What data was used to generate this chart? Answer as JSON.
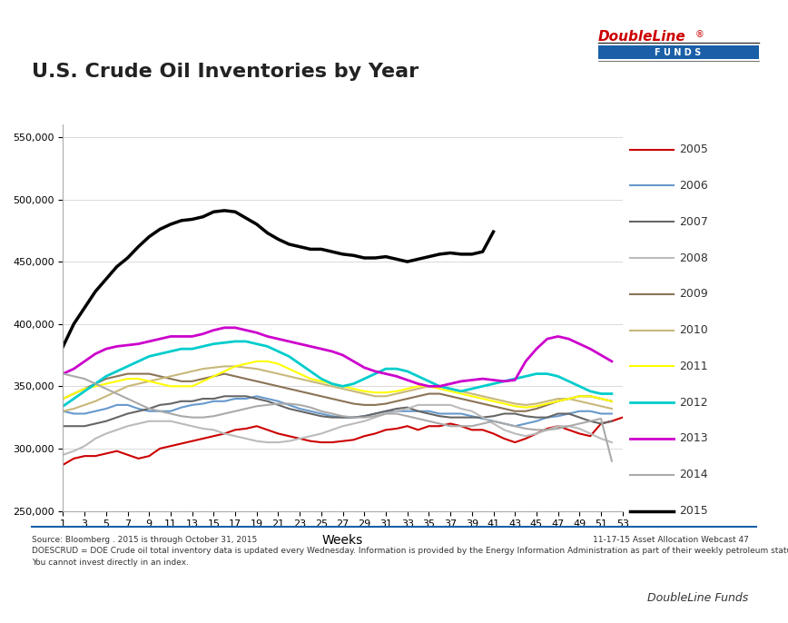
{
  "title": "U.S. Crude Oil Inventories by Year",
  "xlabel": "Weeks",
  "ylabel": "",
  "background_color": "#ffffff",
  "years": [
    "2005",
    "2006",
    "2007",
    "2008",
    "2009",
    "2010",
    "2011",
    "2012",
    "2013",
    "2014",
    "2015"
  ],
  "colors": {
    "2005": "#cc0000",
    "2006": "#6699cc",
    "2007": "#666666",
    "2008": "#bbbbbb",
    "2009": "#8b7355",
    "2010": "#c8b87a",
    "2011": "#ffff00",
    "2012": "#00cccc",
    "2013": "#cc00cc",
    "2014": "#aaaaaa",
    "2015": "#000000"
  },
  "linewidths": {
    "2005": 1.5,
    "2006": 1.5,
    "2007": 1.5,
    "2008": 1.5,
    "2009": 1.5,
    "2010": 1.5,
    "2011": 1.5,
    "2012": 2.0,
    "2013": 2.0,
    "2014": 1.5,
    "2015": 2.5
  },
  "ylim": [
    250000,
    560000
  ],
  "yticks": [
    250000,
    300000,
    350000,
    400000,
    450000,
    500000,
    550000
  ],
  "xticks": [
    1,
    3,
    5,
    7,
    9,
    11,
    13,
    15,
    17,
    19,
    21,
    23,
    25,
    27,
    29,
    31,
    33,
    35,
    37,
    39,
    41,
    43,
    45,
    47,
    49,
    51,
    53
  ],
  "source_text": "Source: Bloomberg . 2015 is through October 31, 2015\nDOESCRUD = DOE Crude oil total inventory data is updated every Wednesday. Information is provided by the Energy Information Administration as part of their weekly petroleum status report.\nYou cannot invest directly in an index.",
  "right_text": "11-17-15 Asset Allocation Webcast 47",
  "bottom_text": "DoubleLine Funds",
  "data": {
    "2005": [
      287000,
      292000,
      294000,
      294000,
      296000,
      298000,
      295000,
      292000,
      294000,
      300000,
      302000,
      304000,
      306000,
      308000,
      310000,
      312000,
      315000,
      316000,
      318000,
      315000,
      312000,
      310000,
      308000,
      306000,
      305000,
      305000,
      306000,
      307000,
      310000,
      312000,
      315000,
      316000,
      318000,
      315000,
      318000,
      318000,
      320000,
      318000,
      315000,
      315000,
      312000,
      308000,
      305000,
      308000,
      312000,
      316000,
      318000,
      315000,
      312000,
      310000,
      320000,
      322000,
      325000
    ],
    "2006": [
      330000,
      328000,
      328000,
      330000,
      332000,
      335000,
      335000,
      332000,
      330000,
      330000,
      330000,
      333000,
      335000,
      336000,
      338000,
      338000,
      340000,
      340000,
      342000,
      340000,
      338000,
      335000,
      332000,
      330000,
      328000,
      326000,
      325000,
      325000,
      326000,
      328000,
      330000,
      330000,
      330000,
      330000,
      330000,
      328000,
      328000,
      328000,
      326000,
      324000,
      322000,
      320000,
      318000,
      320000,
      322000,
      325000,
      326000,
      328000,
      330000,
      330000,
      328000,
      328000,
      null
    ],
    "2007": [
      318000,
      318000,
      318000,
      320000,
      322000,
      325000,
      328000,
      330000,
      332000,
      335000,
      336000,
      338000,
      338000,
      340000,
      340000,
      342000,
      342000,
      342000,
      340000,
      338000,
      335000,
      332000,
      330000,
      328000,
      326000,
      325000,
      325000,
      325000,
      326000,
      328000,
      330000,
      332000,
      333000,
      330000,
      328000,
      326000,
      325000,
      325000,
      325000,
      325000,
      326000,
      328000,
      328000,
      326000,
      325000,
      325000,
      328000,
      328000,
      325000,
      322000,
      320000,
      322000,
      null
    ],
    "2008": [
      295000,
      298000,
      302000,
      308000,
      312000,
      315000,
      318000,
      320000,
      322000,
      322000,
      322000,
      320000,
      318000,
      316000,
      315000,
      312000,
      310000,
      308000,
      306000,
      305000,
      305000,
      306000,
      308000,
      310000,
      312000,
      315000,
      318000,
      320000,
      322000,
      325000,
      328000,
      330000,
      332000,
      335000,
      335000,
      335000,
      335000,
      332000,
      330000,
      325000,
      320000,
      315000,
      312000,
      310000,
      312000,
      315000,
      318000,
      318000,
      316000,
      312000,
      308000,
      305000,
      null
    ],
    "2009": [
      340000,
      344000,
      348000,
      352000,
      356000,
      358000,
      360000,
      360000,
      360000,
      358000,
      356000,
      354000,
      354000,
      356000,
      358000,
      360000,
      358000,
      356000,
      354000,
      352000,
      350000,
      348000,
      346000,
      344000,
      342000,
      340000,
      338000,
      336000,
      335000,
      335000,
      336000,
      338000,
      340000,
      342000,
      344000,
      344000,
      342000,
      340000,
      338000,
      336000,
      334000,
      332000,
      330000,
      330000,
      332000,
      335000,
      338000,
      340000,
      342000,
      342000,
      340000,
      338000,
      null
    ],
    "2010": [
      330000,
      332000,
      335000,
      338000,
      342000,
      346000,
      350000,
      352000,
      354000,
      356000,
      358000,
      360000,
      362000,
      364000,
      365000,
      366000,
      366000,
      365000,
      364000,
      362000,
      360000,
      358000,
      356000,
      354000,
      352000,
      350000,
      348000,
      346000,
      344000,
      342000,
      342000,
      344000,
      346000,
      348000,
      350000,
      350000,
      348000,
      346000,
      344000,
      342000,
      340000,
      338000,
      336000,
      335000,
      336000,
      338000,
      340000,
      340000,
      338000,
      336000,
      334000,
      332000,
      null
    ],
    "2011": [
      340000,
      344000,
      348000,
      350000,
      352000,
      354000,
      356000,
      356000,
      354000,
      352000,
      350000,
      350000,
      350000,
      354000,
      358000,
      362000,
      366000,
      368000,
      370000,
      370000,
      368000,
      364000,
      360000,
      356000,
      354000,
      352000,
      350000,
      348000,
      346000,
      345000,
      345000,
      346000,
      348000,
      350000,
      350000,
      348000,
      346000,
      344000,
      342000,
      340000,
      338000,
      336000,
      334000,
      333000,
      334000,
      336000,
      338000,
      340000,
      342000,
      342000,
      340000,
      338000,
      null
    ],
    "2012": [
      334000,
      340000,
      346000,
      352000,
      358000,
      362000,
      366000,
      370000,
      374000,
      376000,
      378000,
      380000,
      380000,
      382000,
      384000,
      385000,
      386000,
      386000,
      384000,
      382000,
      378000,
      374000,
      368000,
      362000,
      356000,
      352000,
      350000,
      352000,
      356000,
      360000,
      364000,
      364000,
      362000,
      358000,
      354000,
      350000,
      348000,
      346000,
      348000,
      350000,
      352000,
      354000,
      356000,
      358000,
      360000,
      360000,
      358000,
      354000,
      350000,
      346000,
      344000,
      344000,
      null
    ],
    "2013": [
      360000,
      364000,
      370000,
      376000,
      380000,
      382000,
      383000,
      384000,
      386000,
      388000,
      390000,
      390000,
      390000,
      392000,
      395000,
      397000,
      397000,
      395000,
      393000,
      390000,
      388000,
      386000,
      384000,
      382000,
      380000,
      378000,
      375000,
      370000,
      365000,
      362000,
      360000,
      358000,
      355000,
      352000,
      350000,
      350000,
      352000,
      354000,
      355000,
      356000,
      355000,
      354000,
      355000,
      370000,
      380000,
      388000,
      390000,
      388000,
      384000,
      380000,
      375000,
      370000,
      null
    ],
    "2014": [
      360000,
      358000,
      356000,
      352000,
      348000,
      344000,
      340000,
      336000,
      332000,
      330000,
      328000,
      326000,
      325000,
      325000,
      326000,
      328000,
      330000,
      332000,
      334000,
      335000,
      336000,
      336000,
      335000,
      333000,
      330000,
      328000,
      326000,
      325000,
      325000,
      326000,
      328000,
      328000,
      326000,
      324000,
      322000,
      320000,
      318000,
      318000,
      318000,
      320000,
      322000,
      320000,
      318000,
      316000,
      315000,
      315000,
      316000,
      318000,
      320000,
      322000,
      324000,
      290000,
      null
    ],
    "2015": [
      382000,
      400000,
      413000,
      426000,
      436000,
      446000,
      453000,
      462000,
      470000,
      476000,
      480000,
      483000,
      484000,
      486000,
      490000,
      491000,
      490000,
      485000,
      480000,
      473000,
      468000,
      464000,
      462000,
      460000,
      460000,
      458000,
      456000,
      455000,
      453000,
      453000,
      454000,
      452000,
      450000,
      452000,
      454000,
      456000,
      457000,
      456000,
      456000,
      458000,
      474000,
      null,
      null,
      null,
      null,
      null,
      null,
      null,
      null,
      null,
      null,
      null,
      null
    ]
  }
}
